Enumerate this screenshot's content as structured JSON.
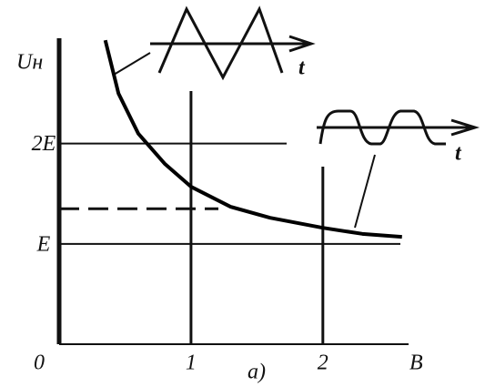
{
  "chart_data": {
    "type": "line",
    "y_label": "Uн",
    "x_label": "B",
    "x": [
      0.35,
      0.45,
      0.6,
      0.8,
      1.0,
      1.3,
      1.6,
      2.0,
      2.3,
      2.6
    ],
    "series": [
      {
        "color": "#000000",
        "values": [
          3.03,
          2.5,
          2.1,
          1.8,
          1.57,
          1.37,
          1.26,
          1.16,
          1.1,
          1.07
        ]
      }
    ],
    "xlim": [
      0,
      2.65
    ],
    "ylim": [
      0,
      3.05
    ],
    "xticks": [
      0,
      1,
      2
    ],
    "yticks": [
      {
        "value": 1,
        "label": "E"
      },
      {
        "value": 2,
        "label": "2E"
      }
    ],
    "dashed_line": 1.35,
    "annotations": [
      "t",
      "t",
      "a)"
    ]
  }
}
